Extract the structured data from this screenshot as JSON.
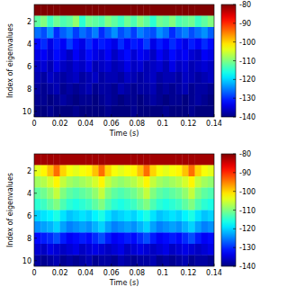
{
  "chart_data": [
    {
      "type": "heatmap",
      "xlabel": "Time (s)",
      "ylabel": "Index of eigenvalues",
      "xlim": [
        0,
        0.14
      ],
      "xticks": [
        0,
        0.02,
        0.04,
        0.06,
        0.08,
        0.1,
        0.12,
        0.14
      ],
      "ylim": [
        0.5,
        10.5
      ],
      "yticks": [
        2,
        4,
        6,
        8,
        10
      ],
      "x": [
        0.0025,
        0.0075,
        0.0125,
        0.0175,
        0.0225,
        0.0275,
        0.0325,
        0.0375,
        0.0425,
        0.0475,
        0.0525,
        0.0575,
        0.0625,
        0.0675,
        0.0725,
        0.0775,
        0.0825,
        0.0875,
        0.0925,
        0.0975,
        0.1025,
        0.1075,
        0.1125,
        0.1175,
        0.1225,
        0.1275,
        0.1325,
        0.1375
      ],
      "y": [
        1,
        2,
        3,
        4,
        5,
        6,
        7,
        8,
        9,
        10
      ],
      "cells": [
        [
          -80,
          -80,
          -80,
          -80,
          -80,
          -80,
          -80,
          -80,
          -80,
          -80,
          -80,
          -80,
          -80,
          -80,
          -80,
          -80,
          -80,
          -80,
          -80,
          -80,
          -80,
          -80,
          -80,
          -80,
          -80,
          -80,
          -80,
          -80
        ],
        [
          -112,
          -110,
          -114,
          -111,
          -113,
          -112,
          -109,
          -115,
          -111,
          -112,
          -113,
          -110,
          -112,
          -114,
          -111,
          -113,
          -110,
          -112,
          -115,
          -111,
          -112,
          -110,
          -113,
          -112,
          -111,
          -114,
          -112,
          -110
        ],
        [
          -126,
          -128,
          -124,
          -130,
          -127,
          -125,
          -129,
          -126,
          -128,
          -125,
          -130,
          -127,
          -124,
          -128,
          -126,
          -129,
          -125,
          -127,
          -128,
          -124,
          -126,
          -130,
          -127,
          -125,
          -128,
          -126,
          -124,
          -127
        ],
        [
          -132,
          -130,
          -134,
          -131,
          -133,
          -129,
          -132,
          -134,
          -130,
          -133,
          -131,
          -132,
          -134,
          -130,
          -133,
          -131,
          -132,
          -129,
          -134,
          -131,
          -133,
          -130,
          -132,
          -134,
          -131,
          -133,
          -130,
          -132
        ],
        [
          -134,
          -133,
          -135,
          -132,
          -134,
          -136,
          -133,
          -135,
          -132,
          -134,
          -135,
          -133,
          -136,
          -134,
          -132,
          -135,
          -133,
          -134,
          -136,
          -133,
          -135,
          -132,
          -134,
          -133,
          -135,
          -136,
          -133,
          -134
        ],
        [
          -136,
          -135,
          -137,
          -134,
          -136,
          -137,
          -135,
          -136,
          -134,
          -137,
          -136,
          -135,
          -137,
          -136,
          -134,
          -136,
          -135,
          -137,
          -136,
          -135,
          -137,
          -134,
          -136,
          -135,
          -137,
          -136,
          -135,
          -136
        ],
        [
          -137,
          -138,
          -136,
          -137,
          -138,
          -137,
          -136,
          -138,
          -137,
          -136,
          -138,
          -137,
          -137,
          -138,
          -136,
          -137,
          -138,
          -137,
          -136,
          -138,
          -137,
          -137,
          -138,
          -136,
          -137,
          -138,
          -137,
          -136
        ],
        [
          -138,
          -139,
          -138,
          -137,
          -139,
          -138,
          -139,
          -138,
          -137,
          -139,
          -138,
          -138,
          -139,
          -137,
          -138,
          -139,
          -138,
          -138,
          -137,
          -139,
          -138,
          -139,
          -138,
          -137,
          -139,
          -138,
          -138,
          -139
        ],
        [
          -139,
          -139,
          -140,
          -139,
          -138,
          -139,
          -140,
          -139,
          -139,
          -140,
          -139,
          -138,
          -139,
          -140,
          -139,
          -139,
          -140,
          -139,
          -138,
          -139,
          -140,
          -139,
          -139,
          -140,
          -139,
          -138,
          -139,
          -140
        ],
        [
          -140,
          -140,
          -139,
          -140,
          -140,
          -140,
          -139,
          -140,
          -140,
          -140,
          -140,
          -139,
          -140,
          -140,
          -140,
          -139,
          -140,
          -140,
          -140,
          -140,
          -139,
          -140,
          -140,
          -140,
          -139,
          -140,
          -140,
          -140
        ]
      ],
      "colorbar": {
        "range": [
          -140,
          -80
        ],
        "ticks": [
          -80,
          -90,
          -100,
          -110,
          -120,
          -130,
          -140
        ]
      }
    },
    {
      "type": "heatmap",
      "xlabel": "Time (s)",
      "ylabel": "Index of eigenvalues",
      "xlim": [
        0,
        0.14
      ],
      "xticks": [
        0,
        0.02,
        0.04,
        0.06,
        0.08,
        0.1,
        0.12,
        0.14
      ],
      "ylim": [
        0.5,
        10.5
      ],
      "yticks": [
        2,
        4,
        6,
        8,
        10
      ],
      "x": [
        0.0025,
        0.0075,
        0.0125,
        0.0175,
        0.0225,
        0.0275,
        0.0325,
        0.0375,
        0.0425,
        0.0475,
        0.0525,
        0.0575,
        0.0625,
        0.0675,
        0.0725,
        0.0775,
        0.0825,
        0.0875,
        0.0925,
        0.0975,
        0.1025,
        0.1075,
        0.1125,
        0.1175,
        0.1225,
        0.1275,
        0.1325,
        0.1375
      ],
      "y": [
        1,
        2,
        3,
        4,
        5,
        6,
        7,
        8,
        9,
        10
      ],
      "cells": [
        [
          -82,
          -82,
          -82,
          -82,
          -82,
          -82,
          -82,
          -82,
          -82,
          -82,
          -82,
          -82,
          -82,
          -82,
          -82,
          -82,
          -82,
          -82,
          -82,
          -82,
          -82,
          -82,
          -82,
          -82,
          -82,
          -82,
          -82,
          -82
        ],
        [
          -104,
          -102,
          -99,
          -94,
          -100,
          -103,
          -104,
          -103,
          -102,
          -99,
          -94,
          -100,
          -103,
          -104,
          -103,
          -102,
          -99,
          -94,
          -100,
          -103,
          -104,
          -103,
          -102,
          -99,
          -94,
          -100,
          -103,
          -104
        ],
        [
          -108,
          -107,
          -105,
          -102,
          -106,
          -108,
          -109,
          -108,
          -107,
          -105,
          -102,
          -106,
          -108,
          -109,
          -108,
          -107,
          -105,
          -102,
          -106,
          -108,
          -109,
          -108,
          -107,
          -105,
          -102,
          -106,
          -108,
          -109
        ],
        [
          -112,
          -111,
          -109,
          -106,
          -110,
          -112,
          -113,
          -112,
          -111,
          -109,
          -106,
          -110,
          -112,
          -113,
          -112,
          -111,
          -109,
          -106,
          -110,
          -112,
          -113,
          -112,
          -111,
          -109,
          -106,
          -110,
          -112,
          -113
        ],
        [
          -115,
          -114,
          -112,
          -110,
          -113,
          -115,
          -116,
          -115,
          -114,
          -112,
          -110,
          -113,
          -115,
          -116,
          -115,
          -114,
          -112,
          -110,
          -113,
          -115,
          -116,
          -115,
          -114,
          -112,
          -110,
          -113,
          -115,
          -116
        ],
        [
          -120,
          -119,
          -118,
          -116,
          -119,
          -121,
          -120,
          -119,
          -120,
          -118,
          -116,
          -119,
          -121,
          -120,
          -119,
          -120,
          -118,
          -116,
          -119,
          -121,
          -120,
          -119,
          -120,
          -118,
          -116,
          -119,
          -121,
          -120
        ],
        [
          -124,
          -123,
          -122,
          -120,
          -123,
          -125,
          -124,
          -123,
          -124,
          -122,
          -120,
          -123,
          -125,
          -124,
          -123,
          -124,
          -122,
          -120,
          -123,
          -125,
          -124,
          -123,
          -124,
          -122,
          -120,
          -123,
          -125,
          -124
        ],
        [
          -132,
          -131,
          -130,
          -128,
          -131,
          -133,
          -132,
          -131,
          -132,
          -130,
          -128,
          -131,
          -133,
          -132,
          -131,
          -132,
          -130,
          -128,
          -131,
          -133,
          -132,
          -131,
          -132,
          -130,
          -128,
          -131,
          -133,
          -132
        ],
        [
          -135,
          -136,
          -134,
          -135,
          -136,
          -135,
          -134,
          -136,
          -135,
          -134,
          -135,
          -136,
          -135,
          -134,
          -136,
          -135,
          -134,
          -135,
          -136,
          -135,
          -134,
          -136,
          -135,
          -134,
          -135,
          -136,
          -135,
          -134
        ],
        [
          -138,
          -139,
          -138,
          -137,
          -139,
          -138,
          -139,
          -138,
          -137,
          -139,
          -138,
          -138,
          -139,
          -137,
          -138,
          -139,
          -138,
          -138,
          -137,
          -139,
          -138,
          -139,
          -138,
          -137,
          -139,
          -138,
          -138,
          -139
        ]
      ],
      "colorbar": {
        "range": [
          -140,
          -80
        ],
        "ticks": [
          -80,
          -90,
          -100,
          -110,
          -120,
          -130,
          -140
        ]
      }
    }
  ]
}
